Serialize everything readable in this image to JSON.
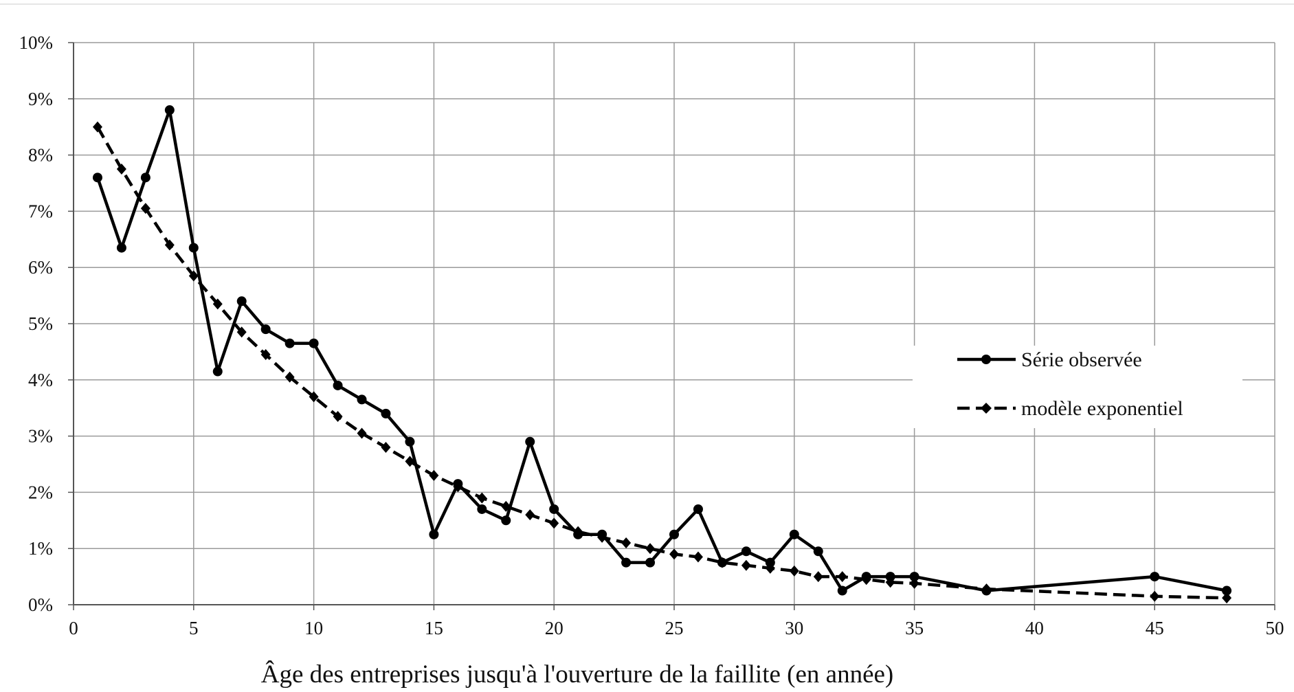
{
  "chart_data": {
    "type": "line",
    "title": "",
    "xlabel": "Âge des entreprises jusqu'à l'ouverture de la faillite (en année)",
    "ylabel": "",
    "xlim": [
      0,
      50
    ],
    "ylim": [
      0,
      10
    ],
    "x_ticks": [
      0,
      5,
      10,
      15,
      20,
      25,
      30,
      35,
      40,
      45,
      50
    ],
    "x_tick_labels": [
      "0",
      "5",
      "10",
      "15",
      "20",
      "25",
      "30",
      "35",
      "40",
      "45",
      "50"
    ],
    "y_ticks": [
      0,
      1,
      2,
      3,
      4,
      5,
      6,
      7,
      8,
      9,
      10
    ],
    "y_tick_labels": [
      "0%",
      "1%",
      "2%",
      "3%",
      "4%",
      "5%",
      "6%",
      "7%",
      "8%",
      "9%",
      "10%"
    ],
    "grid": true,
    "legend_position": "right",
    "series": [
      {
        "name": "Série observée",
        "style": "solid",
        "marker": "circle",
        "color": "#000000",
        "x": [
          1,
          2,
          3,
          4,
          5,
          6,
          7,
          8,
          9,
          10,
          11,
          12,
          13,
          14,
          15,
          16,
          17,
          18,
          19,
          20,
          21,
          22,
          23,
          24,
          25,
          26,
          27,
          28,
          29,
          30,
          31,
          32,
          33,
          34,
          35,
          38,
          45,
          48
        ],
        "y": [
          7.6,
          6.35,
          7.6,
          8.8,
          6.35,
          4.15,
          5.4,
          4.9,
          4.65,
          4.65,
          3.9,
          3.65,
          3.4,
          2.9,
          1.25,
          2.15,
          1.7,
          1.5,
          2.9,
          1.7,
          1.25,
          1.25,
          0.75,
          0.75,
          1.25,
          1.7,
          0.75,
          0.95,
          0.75,
          1.25,
          0.95,
          0.25,
          0.5,
          0.5,
          0.5,
          0.25,
          0.5,
          0.25
        ]
      },
      {
        "name": "modèle exponentiel",
        "style": "dashed",
        "marker": "diamond",
        "color": "#000000",
        "x": [
          1,
          2,
          3,
          4,
          5,
          6,
          7,
          8,
          9,
          10,
          11,
          12,
          13,
          14,
          15,
          16,
          17,
          18,
          19,
          20,
          21,
          22,
          23,
          24,
          25,
          26,
          27,
          28,
          29,
          30,
          31,
          32,
          33,
          34,
          35,
          38,
          45,
          48
        ],
        "y": [
          8.5,
          7.75,
          7.05,
          6.4,
          5.85,
          5.35,
          4.85,
          4.45,
          4.05,
          3.7,
          3.35,
          3.05,
          2.8,
          2.55,
          2.3,
          2.1,
          1.9,
          1.75,
          1.6,
          1.45,
          1.3,
          1.2,
          1.1,
          1.0,
          0.9,
          0.85,
          0.75,
          0.7,
          0.65,
          0.6,
          0.5,
          0.5,
          0.45,
          0.4,
          0.38,
          0.28,
          0.15,
          0.12
        ]
      }
    ]
  }
}
